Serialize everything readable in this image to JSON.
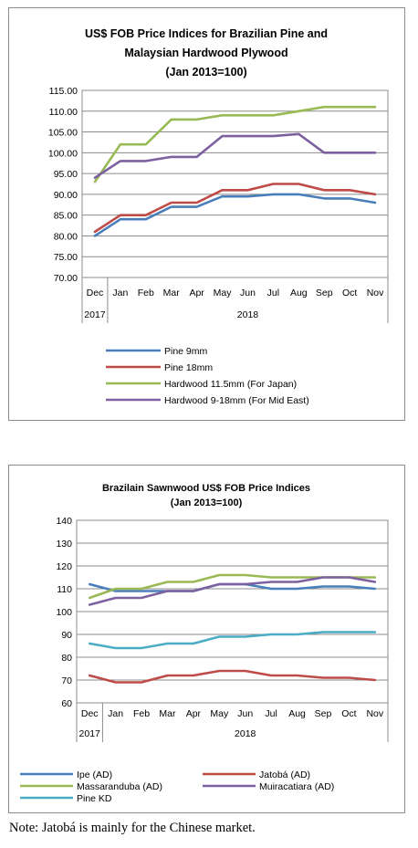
{
  "chart_data": [
    {
      "type": "line",
      "title": "US$ FOB Price Indices for Brazilian Pine and",
      "subtitle": "Malaysian Hardwood Plywood",
      "subtitle2": "(Jan 2013=100)",
      "categories": [
        "Dec",
        "Jan",
        "Feb",
        "Mar",
        "Apr",
        "May",
        "Jun",
        "Jul",
        "Aug",
        "Sep",
        "Oct",
        "Nov"
      ],
      "year_labels": [
        "2017",
        "2018"
      ],
      "ylim": [
        70,
        115
      ],
      "ytick_step": 5,
      "ytick_labels": [
        "70.00",
        "75.00",
        "80.00",
        "85.00",
        "90.00",
        "95.00",
        "100.00",
        "105.00",
        "110.00",
        "115.00"
      ],
      "grid": true,
      "legend_position": "bottom",
      "series": [
        {
          "name": "Pine 9mm",
          "color": "#4a7ebb",
          "values": [
            80,
            84,
            84,
            87,
            87,
            89.5,
            89.5,
            90,
            90,
            89,
            89,
            88
          ]
        },
        {
          "name": "Pine 18mm",
          "color": "#be4b48",
          "values": [
            81,
            85,
            85,
            88,
            88,
            91,
            91,
            92.5,
            92.5,
            91,
            91,
            90
          ]
        },
        {
          "name": "Hardwood 11.5mm (For Japan)",
          "color": "#98b954",
          "values": [
            93,
            102,
            102,
            108,
            108,
            109,
            109,
            109,
            110,
            111,
            111,
            111
          ]
        },
        {
          "name": "Hardwood 9-18mm (For Mid East)",
          "color": "#7d60a0",
          "values": [
            94,
            98,
            98,
            99,
            99,
            104,
            104,
            104,
            104.5,
            100,
            100,
            100
          ]
        }
      ]
    },
    {
      "type": "line",
      "title": "Brazilain Sawnwood US$ FOB Price Indices",
      "subtitle": "(Jan 2013=100)",
      "categories": [
        "Dec",
        "Jan",
        "Feb",
        "Mar",
        "Apr",
        "May",
        "Jun",
        "Jul",
        "Aug",
        "Sep",
        "Oct",
        "Nov"
      ],
      "year_labels": [
        "2017",
        "2018"
      ],
      "ylim": [
        60,
        140
      ],
      "ytick_step": 10,
      "ytick_labels": [
        "60",
        "70",
        "80",
        "90",
        "100",
        "110",
        "120",
        "130",
        "140"
      ],
      "grid": true,
      "legend_position": "bottom",
      "series": [
        {
          "name": "Ipe (AD)",
          "color": "#4a7ebb",
          "values": [
            112,
            109,
            109,
            109,
            109,
            112,
            112,
            110,
            110,
            111,
            111,
            110
          ]
        },
        {
          "name": "Jatobá (AD)",
          "color": "#be4b48",
          "values": [
            72,
            69,
            69,
            72,
            72,
            74,
            74,
            72,
            72,
            71,
            71,
            70
          ]
        },
        {
          "name": "Massaranduba (AD)",
          "color": "#98b954",
          "values": [
            106,
            110,
            110,
            113,
            113,
            116,
            116,
            115,
            115,
            115,
            115,
            115
          ]
        },
        {
          "name": "Muiracatiara (AD)",
          "color": "#7d60a0",
          "values": [
            103,
            106,
            106,
            109,
            109,
            112,
            112,
            113,
            113,
            115,
            115,
            113
          ]
        },
        {
          "name": "Pine KD",
          "color": "#4bacc6",
          "values": [
            86,
            84,
            84,
            86,
            86,
            89,
            89,
            90,
            90,
            91,
            91,
            91
          ]
        }
      ]
    }
  ],
  "note": "Note: Jatobá is mainly for the Chinese market."
}
